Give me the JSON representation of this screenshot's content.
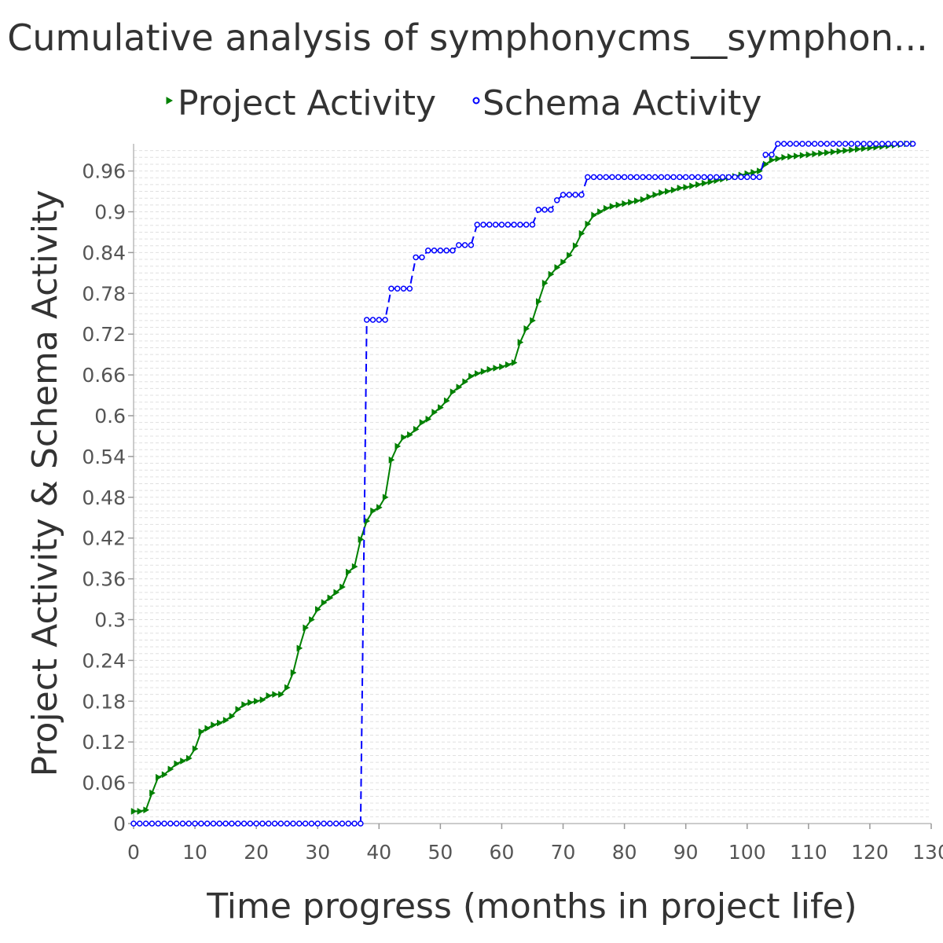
{
  "chart_data": {
    "type": "line",
    "title": "Cumulative analysis of symphonycms__symphon...",
    "xlabel": "Time progress (months in project life)",
    "ylabel": "Project Activity & Schema Activity",
    "xlim": [
      0,
      130
    ],
    "ylim": [
      0,
      1.0
    ],
    "x_ticks": [
      "0",
      "10",
      "20",
      "30",
      "40",
      "50",
      "60",
      "70",
      "80",
      "90",
      "100",
      "110",
      "120",
      "130"
    ],
    "y_ticks": [
      "0",
      "0.06",
      "0.12",
      "0.18",
      "0.24",
      "0.3",
      "0.36",
      "0.42",
      "0.48",
      "0.54",
      "0.6",
      "0.66",
      "0.72",
      "0.78",
      "0.84",
      "0.9",
      "0.96"
    ],
    "grid": true,
    "legend_position": "top",
    "series": [
      {
        "name": "Project Activity",
        "color": "#008000",
        "marker": "triangle-right",
        "line": "solid",
        "x": [
          0,
          1,
          2,
          3,
          4,
          5,
          6,
          7,
          8,
          9,
          10,
          11,
          12,
          13,
          14,
          15,
          16,
          17,
          18,
          19,
          20,
          21,
          22,
          23,
          24,
          25,
          26,
          27,
          28,
          29,
          30,
          31,
          32,
          33,
          34,
          35,
          36,
          37,
          38,
          39,
          40,
          41,
          42,
          43,
          44,
          45,
          46,
          47,
          48,
          49,
          50,
          51,
          52,
          53,
          54,
          55,
          56,
          57,
          58,
          59,
          60,
          61,
          62,
          63,
          64,
          65,
          66,
          67,
          68,
          69,
          70,
          71,
          72,
          73,
          74,
          75,
          76,
          77,
          78,
          79,
          80,
          81,
          82,
          83,
          84,
          85,
          86,
          87,
          88,
          89,
          90,
          91,
          92,
          93,
          94,
          95,
          96,
          97,
          98,
          99,
          100,
          101,
          102,
          103,
          104,
          105,
          106,
          107,
          108,
          109,
          110,
          111,
          112,
          113,
          114,
          115,
          116,
          117,
          118,
          119,
          120,
          121,
          122,
          123,
          124,
          125,
          126,
          127
        ],
        "y": [
          0.018,
          0.018,
          0.02,
          0.045,
          0.068,
          0.072,
          0.08,
          0.088,
          0.092,
          0.096,
          0.11,
          0.135,
          0.14,
          0.145,
          0.148,
          0.152,
          0.158,
          0.168,
          0.175,
          0.178,
          0.18,
          0.182,
          0.188,
          0.19,
          0.19,
          0.2,
          0.222,
          0.258,
          0.288,
          0.3,
          0.315,
          0.325,
          0.332,
          0.34,
          0.348,
          0.37,
          0.378,
          0.418,
          0.445,
          0.46,
          0.465,
          0.48,
          0.535,
          0.555,
          0.568,
          0.572,
          0.58,
          0.59,
          0.595,
          0.605,
          0.612,
          0.622,
          0.635,
          0.642,
          0.65,
          0.658,
          0.662,
          0.665,
          0.668,
          0.67,
          0.672,
          0.675,
          0.678,
          0.708,
          0.728,
          0.74,
          0.768,
          0.795,
          0.808,
          0.818,
          0.826,
          0.836,
          0.85,
          0.868,
          0.882,
          0.895,
          0.9,
          0.905,
          0.908,
          0.91,
          0.912,
          0.914,
          0.916,
          0.918,
          0.922,
          0.925,
          0.928,
          0.93,
          0.932,
          0.935,
          0.936,
          0.938,
          0.94,
          0.942,
          0.944,
          0.946,
          0.948,
          0.95,
          0.952,
          0.954,
          0.956,
          0.958,
          0.96,
          0.97,
          0.976,
          0.978,
          0.98,
          0.981,
          0.982,
          0.983,
          0.984,
          0.985,
          0.986,
          0.987,
          0.988,
          0.989,
          0.99,
          0.991,
          0.992,
          0.993,
          0.994,
          0.995,
          0.996,
          0.997,
          0.998,
          0.999,
          1.0,
          1.0
        ]
      },
      {
        "name": "Schema Activity",
        "color": "#0000ff",
        "marker": "circle",
        "line": "dashed",
        "x": [
          0,
          1,
          2,
          3,
          4,
          5,
          6,
          7,
          8,
          9,
          10,
          11,
          12,
          13,
          14,
          15,
          16,
          17,
          18,
          19,
          20,
          21,
          22,
          23,
          24,
          25,
          26,
          27,
          28,
          29,
          30,
          31,
          32,
          33,
          34,
          35,
          36,
          37,
          38,
          39,
          40,
          41,
          42,
          43,
          44,
          45,
          46,
          47,
          48,
          49,
          50,
          51,
          52,
          53,
          54,
          55,
          56,
          57,
          58,
          59,
          60,
          61,
          62,
          63,
          64,
          65,
          66,
          67,
          68,
          69,
          70,
          71,
          72,
          73,
          74,
          75,
          76,
          77,
          78,
          79,
          80,
          81,
          82,
          83,
          84,
          85,
          86,
          87,
          88,
          89,
          90,
          91,
          92,
          93,
          94,
          95,
          96,
          97,
          98,
          99,
          100,
          101,
          102,
          103,
          104,
          105,
          106,
          107,
          108,
          109,
          110,
          111,
          112,
          113,
          114,
          115,
          116,
          117,
          118,
          119,
          120,
          121,
          122,
          123,
          124,
          125,
          126,
          127
        ],
        "y": [
          0.0,
          0.0,
          0.0,
          0.0,
          0.0,
          0.0,
          0.0,
          0.0,
          0.0,
          0.0,
          0.0,
          0.0,
          0.0,
          0.0,
          0.0,
          0.0,
          0.0,
          0.0,
          0.0,
          0.0,
          0.0,
          0.0,
          0.0,
          0.0,
          0.0,
          0.0,
          0.0,
          0.0,
          0.0,
          0.0,
          0.0,
          0.0,
          0.0,
          0.0,
          0.0,
          0.0,
          0.0,
          0.0,
          0.741,
          0.741,
          0.741,
          0.741,
          0.787,
          0.787,
          0.787,
          0.787,
          0.833,
          0.833,
          0.843,
          0.843,
          0.843,
          0.843,
          0.843,
          0.851,
          0.851,
          0.851,
          0.881,
          0.881,
          0.881,
          0.881,
          0.881,
          0.881,
          0.881,
          0.881,
          0.881,
          0.881,
          0.903,
          0.903,
          0.903,
          0.917,
          0.925,
          0.925,
          0.925,
          0.925,
          0.951,
          0.951,
          0.951,
          0.951,
          0.951,
          0.951,
          0.951,
          0.951,
          0.951,
          0.951,
          0.951,
          0.951,
          0.951,
          0.951,
          0.951,
          0.951,
          0.951,
          0.951,
          0.951,
          0.951,
          0.951,
          0.951,
          0.951,
          0.951,
          0.951,
          0.951,
          0.951,
          0.951,
          0.951,
          0.984,
          0.984,
          1.0,
          1.0,
          1.0,
          1.0,
          1.0,
          1.0,
          1.0,
          1.0,
          1.0,
          1.0,
          1.0,
          1.0,
          1.0,
          1.0,
          1.0,
          1.0,
          1.0,
          1.0,
          1.0,
          1.0,
          1.0,
          1.0,
          1.0
        ]
      }
    ]
  }
}
